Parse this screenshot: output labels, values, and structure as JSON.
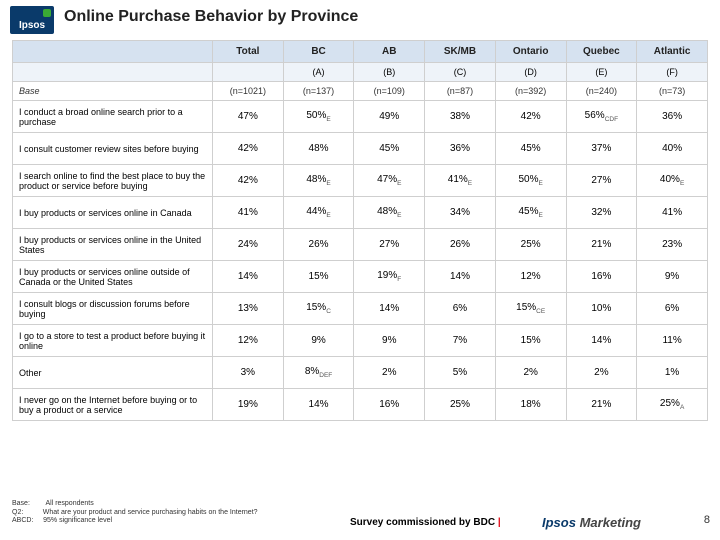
{
  "logo_text": "Ipsos",
  "page_title": "Online Purchase Behavior by Province",
  "columns": [
    "Total",
    "BC",
    "AB",
    "SK/MB",
    "Ontario",
    "Quebec",
    "Atlantic"
  ],
  "letters": [
    "",
    "(A)",
    "(B)",
    "(C)",
    "(D)",
    "(E)",
    "(F)"
  ],
  "base_label": "Base",
  "base_vals": [
    "(n=1021)",
    "(n=137)",
    "(n=109)",
    "(n=87)",
    "(n=392)",
    "(n=240)",
    "(n=73)"
  ],
  "rows": [
    {
      "label": "I conduct a broad online search prior to a purchase",
      "cells": [
        {
          "v": "47%"
        },
        {
          "v": "50%",
          "s": "E"
        },
        {
          "v": "49%"
        },
        {
          "v": "38%"
        },
        {
          "v": "42%"
        },
        {
          "v": "56%",
          "s": "CDF"
        },
        {
          "v": "36%"
        }
      ]
    },
    {
      "label": "I consult customer review sites before buying",
      "cells": [
        {
          "v": "42%"
        },
        {
          "v": "48%"
        },
        {
          "v": "45%"
        },
        {
          "v": "36%"
        },
        {
          "v": "45%"
        },
        {
          "v": "37%"
        },
        {
          "v": "40%"
        }
      ]
    },
    {
      "label": "I search online to find the best place to buy the product or service before buying",
      "cells": [
        {
          "v": "42%"
        },
        {
          "v": "48%",
          "s": "E"
        },
        {
          "v": "47%",
          "s": "E"
        },
        {
          "v": "41%",
          "s": "E"
        },
        {
          "v": "50%",
          "s": "E"
        },
        {
          "v": "27%"
        },
        {
          "v": "40%",
          "s": "E"
        }
      ]
    },
    {
      "label": "I buy products or services online in Canada",
      "cells": [
        {
          "v": "41%"
        },
        {
          "v": "44%",
          "s": "E"
        },
        {
          "v": "48%",
          "s": "E"
        },
        {
          "v": "34%"
        },
        {
          "v": "45%",
          "s": "E"
        },
        {
          "v": "32%"
        },
        {
          "v": "41%"
        }
      ]
    },
    {
      "label": "I buy products or services online in the United States",
      "cells": [
        {
          "v": "24%"
        },
        {
          "v": "26%"
        },
        {
          "v": "27%"
        },
        {
          "v": "26%"
        },
        {
          "v": "25%"
        },
        {
          "v": "21%"
        },
        {
          "v": "23%"
        }
      ]
    },
    {
      "label": "I buy products or services online outside of Canada or the United States",
      "cells": [
        {
          "v": "14%"
        },
        {
          "v": "15%"
        },
        {
          "v": "19%",
          "s": "F"
        },
        {
          "v": "14%"
        },
        {
          "v": "12%"
        },
        {
          "v": "16%"
        },
        {
          "v": "9%"
        }
      ]
    },
    {
      "label": "I consult blogs or discussion forums before buying",
      "cells": [
        {
          "v": "13%"
        },
        {
          "v": "15%",
          "s": "C"
        },
        {
          "v": "14%"
        },
        {
          "v": "6%"
        },
        {
          "v": "15%",
          "s": "CE"
        },
        {
          "v": "10%"
        },
        {
          "v": "6%"
        }
      ]
    },
    {
      "label": "I go to a store to test a product before buying it online",
      "cells": [
        {
          "v": "12%"
        },
        {
          "v": "9%"
        },
        {
          "v": "9%"
        },
        {
          "v": "7%"
        },
        {
          "v": "15%"
        },
        {
          "v": "14%"
        },
        {
          "v": "11%"
        }
      ]
    },
    {
      "label": "Other",
      "cells": [
        {
          "v": "3%"
        },
        {
          "v": "8%",
          "s": "DEF"
        },
        {
          "v": "2%"
        },
        {
          "v": "5%"
        },
        {
          "v": "2%"
        },
        {
          "v": "2%"
        },
        {
          "v": "1%"
        }
      ]
    },
    {
      "label": "I never go on the Internet before buying or to buy a product or a service",
      "cells": [
        {
          "v": "19%"
        },
        {
          "v": "14%"
        },
        {
          "v": "16%"
        },
        {
          "v": "25%"
        },
        {
          "v": "18%"
        },
        {
          "v": "21%"
        },
        {
          "v": "25%",
          "s": "A"
        }
      ]
    }
  ],
  "foot": {
    "l1a": "Base:",
    "l1b": "All respondents",
    "l2a": "Q2:",
    "l2b": "What are your product and service purchasing habits on the Internet?",
    "l3a": "ABCD:",
    "l3b": "95% significance level"
  },
  "survey_text": "Survey commissioned by BDC",
  "mkt_brand": "Ipsos",
  "mkt_word": "Marketing",
  "page_number": "8"
}
